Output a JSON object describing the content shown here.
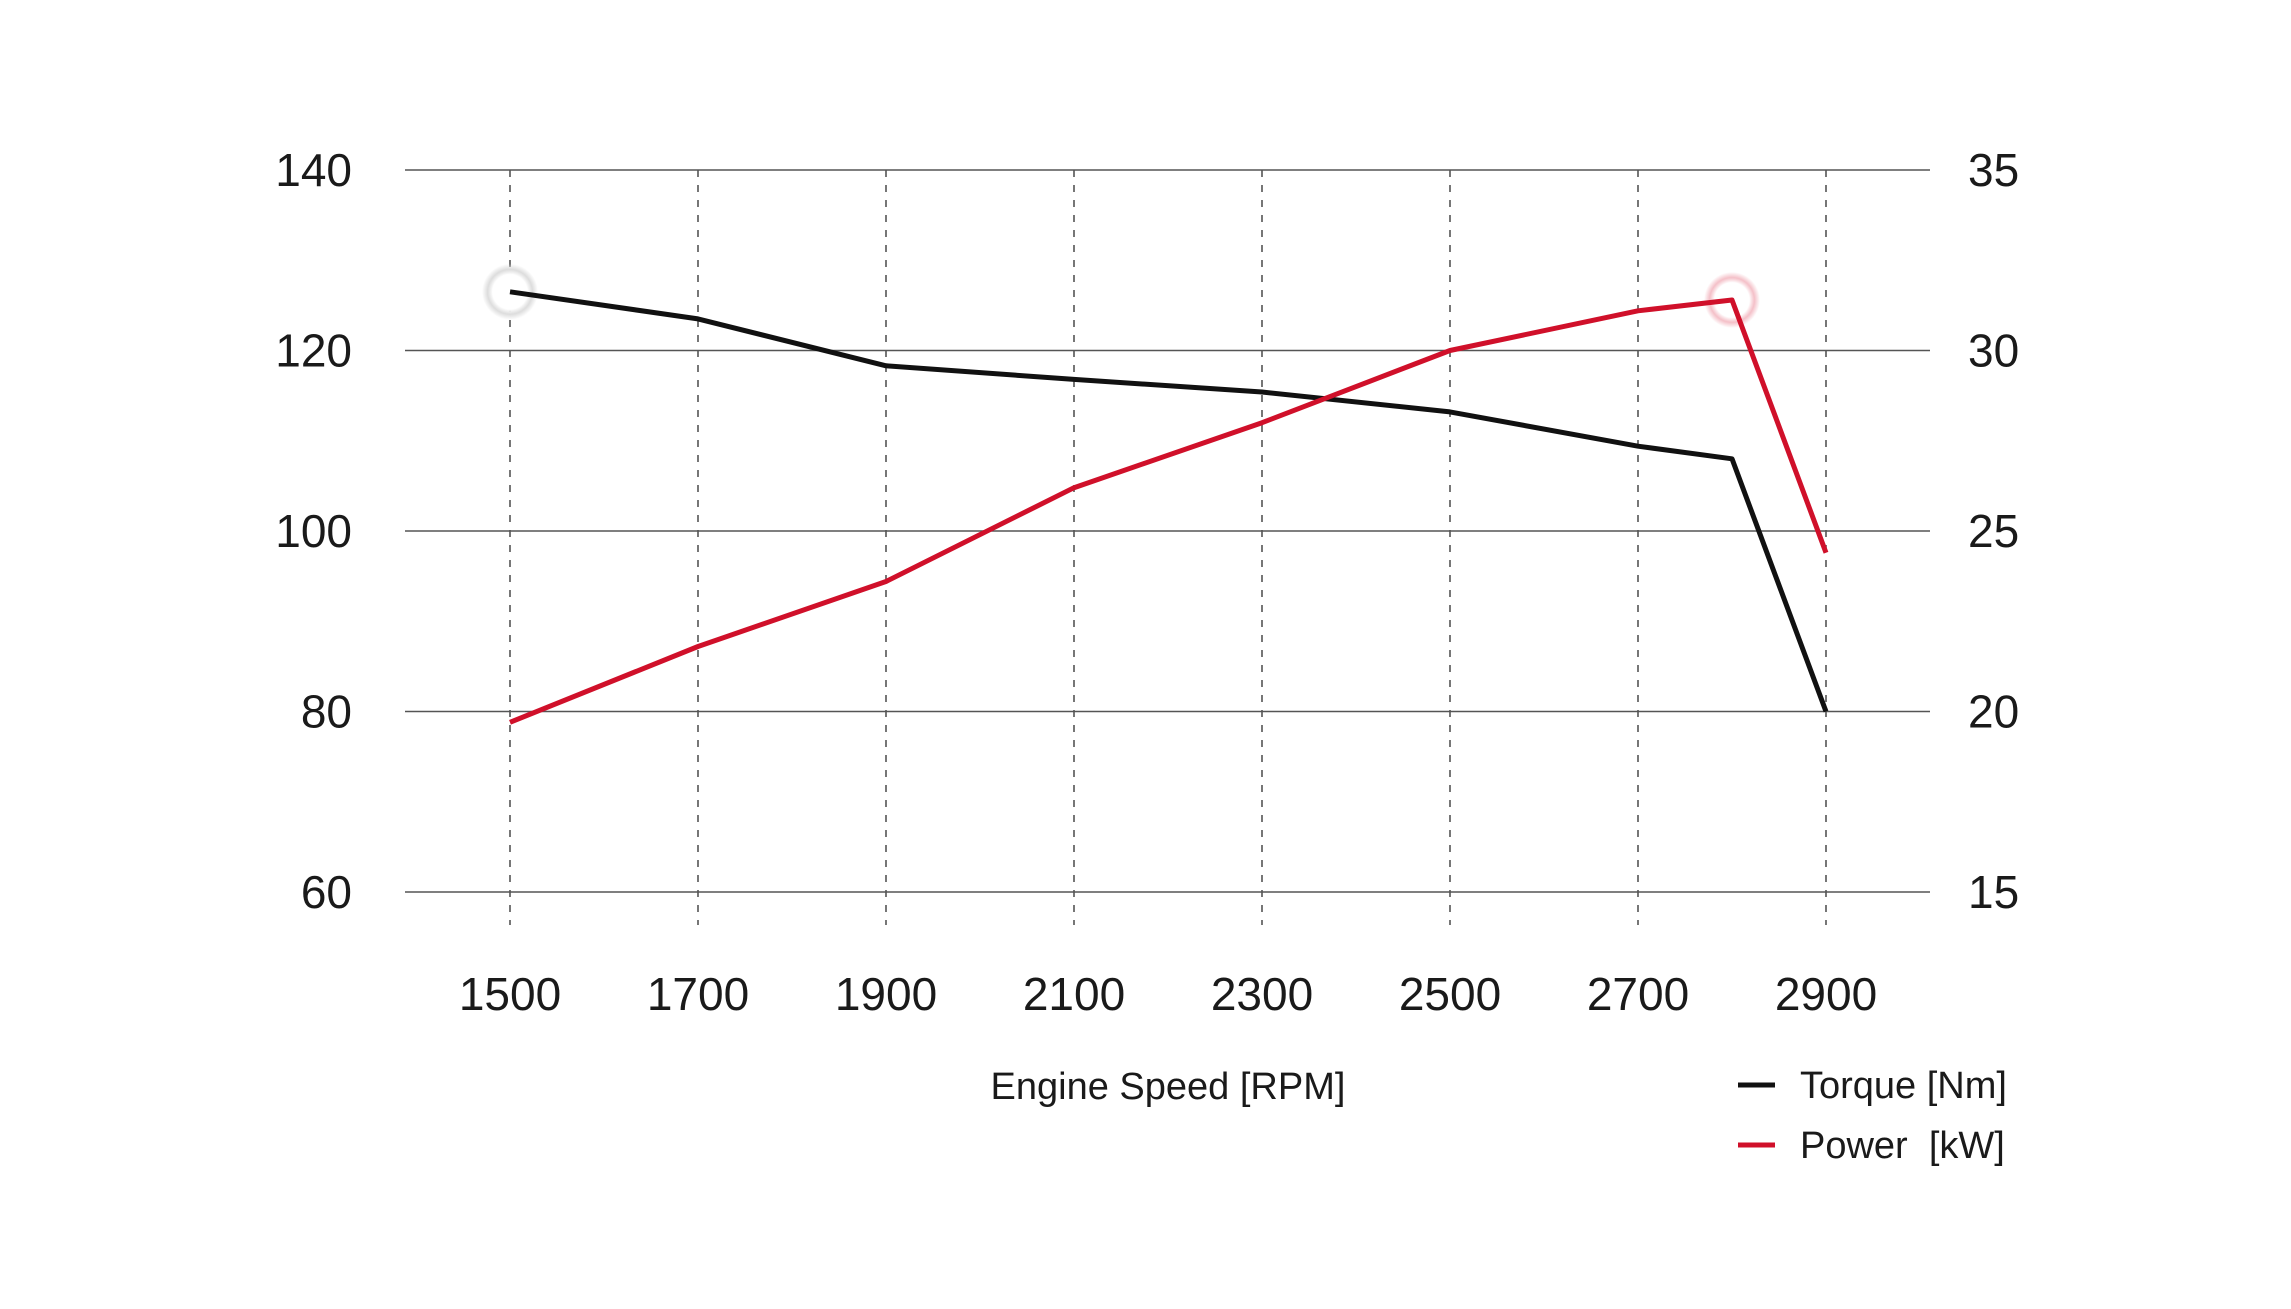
{
  "chart_data": {
    "type": "line",
    "xlabel": "Engine Speed [RPM]",
    "x_ticks": [
      1500,
      1700,
      1900,
      2100,
      2300,
      2500,
      2700,
      2900
    ],
    "xlim": [
      1390,
      3010
    ],
    "y_left": {
      "ticks": [
        60,
        80,
        100,
        120,
        140
      ],
      "ylim": [
        60,
        140
      ]
    },
    "y_right": {
      "ticks": [
        15,
        20,
        25,
        30,
        35
      ],
      "ylim": [
        15,
        35
      ]
    },
    "grid": {
      "horizontal": "solid",
      "vertical": "dashed"
    },
    "legend_position": "bottom-right",
    "series": [
      {
        "name": "Torque [Nm]",
        "axis": "left",
        "color": "#111111",
        "x": [
          1500,
          1700,
          1900,
          2100,
          2300,
          2500,
          2700,
          2800,
          2900
        ],
        "y": [
          126.5,
          123.5,
          118.3,
          116.8,
          115.4,
          113.2,
          109.4,
          108.0,
          80.0
        ],
        "highlight_marker_at": 1500
      },
      {
        "name": "Power  [kW]",
        "axis": "right",
        "color": "#d0102a",
        "x": [
          1500,
          1700,
          1900,
          2100,
          2300,
          2500,
          2700,
          2800,
          2900
        ],
        "y": [
          19.7,
          21.8,
          23.6,
          26.2,
          28.0,
          30.0,
          31.1,
          31.4,
          24.4
        ],
        "highlight_marker_at": 2800
      }
    ]
  }
}
